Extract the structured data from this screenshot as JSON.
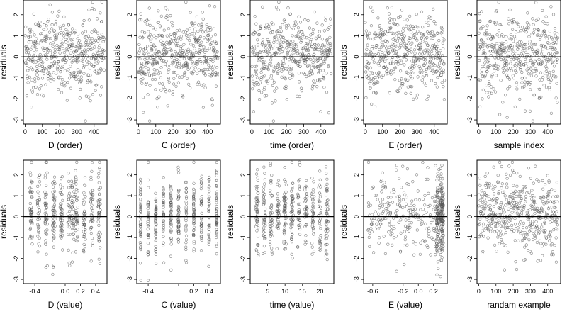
{
  "chart_data": [
    {
      "type": "scatter",
      "xlabel": "D (order)",
      "ylabel": "residuals",
      "xlim": [
        -10,
        475
      ],
      "ylim": [
        -3.2,
        2.7
      ],
      "xticks": [
        0,
        100,
        200,
        300,
        400
      ],
      "yticks": [
        -3,
        -2,
        -1,
        0,
        1,
        2
      ],
      "hline": 0,
      "distribution": "index"
    },
    {
      "type": "scatter",
      "xlabel": "C (order)",
      "ylabel": "residuals",
      "xlim": [
        -10,
        475
      ],
      "ylim": [
        -3.2,
        2.7
      ],
      "xticks": [
        0,
        100,
        200,
        300,
        400
      ],
      "yticks": [
        -3,
        -2,
        -1,
        0,
        1,
        2
      ],
      "hline": 0,
      "distribution": "index"
    },
    {
      "type": "scatter",
      "xlabel": "time (order)",
      "ylabel": "residuals",
      "xlim": [
        -10,
        475
      ],
      "ylim": [
        -3.2,
        2.7
      ],
      "xticks": [
        0,
        100,
        200,
        300,
        400
      ],
      "yticks": [
        -3,
        -2,
        -1,
        0,
        1,
        2
      ],
      "hline": 0,
      "distribution": "index"
    },
    {
      "type": "scatter",
      "xlabel": "E (order)",
      "ylabel": "residuals",
      "xlim": [
        -10,
        475
      ],
      "ylim": [
        -3.2,
        2.7
      ],
      "xticks": [
        0,
        100,
        200,
        300,
        400
      ],
      "yticks": [
        -3,
        -2,
        -1,
        0,
        1,
        2
      ],
      "hline": 0,
      "distribution": "index"
    },
    {
      "type": "scatter",
      "xlabel": "sample index",
      "ylabel": "residuals",
      "xlim": [
        -10,
        475
      ],
      "ylim": [
        -3.2,
        2.7
      ],
      "xticks": [
        0,
        100,
        200,
        300,
        400
      ],
      "yticks": [
        -3,
        -2,
        -1,
        0,
        1,
        2
      ],
      "hline": 0,
      "distribution": "index"
    },
    {
      "type": "scatter",
      "xlabel": "D (value)",
      "ylabel": "residuals",
      "xlim": [
        -0.55,
        0.55
      ],
      "ylim": [
        -3.2,
        2.7
      ],
      "xticks": [
        -0.4,
        0.0,
        0.2,
        0.4
      ],
      "xticklabels": [
        "-0.4",
        "0.0",
        "0.2",
        "0.4"
      ],
      "yticks": [
        -3,
        -2,
        -1,
        0,
        1,
        2
      ],
      "hline": 0,
      "distribution": "clustered",
      "cluster_values": [
        -0.45,
        -0.35,
        -0.25,
        -0.15,
        -0.05,
        0.05,
        0.1,
        0.15,
        0.25,
        0.35,
        0.45
      ]
    },
    {
      "type": "scatter",
      "xlabel": "C (value)",
      "ylabel": "residuals",
      "xlim": [
        -0.55,
        0.55
      ],
      "ylim": [
        -3.2,
        2.7
      ],
      "xticks": [
        -0.4,
        0.0,
        0.2,
        0.4
      ],
      "xticklabels": [
        "-0.4",
        "",
        "0.2",
        "0.4"
      ],
      "yticks": [
        -3,
        -2,
        -1,
        0,
        1,
        2
      ],
      "hline": 0,
      "distribution": "discrete",
      "cluster_values": [
        -0.5,
        -0.4,
        -0.3,
        -0.2,
        -0.1,
        0.0,
        0.1,
        0.2,
        0.3,
        0.4,
        0.5
      ]
    },
    {
      "type": "scatter",
      "xlabel": "time (value)",
      "ylabel": "residuals",
      "xlim": [
        0,
        24
      ],
      "ylim": [
        -3.2,
        2.7
      ],
      "xticks": [
        5,
        10,
        15,
        20
      ],
      "yticks": [
        -3,
        -2,
        -1,
        0,
        1,
        2
      ],
      "hline": 0,
      "distribution": "clustered",
      "cluster_values": [
        2,
        4,
        6,
        8,
        10,
        12,
        14,
        16,
        18,
        20,
        22
      ]
    },
    {
      "type": "scatter",
      "xlabel": "E (value)",
      "ylabel": "residuals",
      "xlim": [
        -0.72,
        0.38
      ],
      "ylim": [
        -3.2,
        2.7
      ],
      "xticks": [
        -0.6,
        -0.2,
        0.0,
        0.2
      ],
      "xticklabels": [
        "-0.6",
        "-0.2",
        "0.0",
        "0.2"
      ],
      "yticks": [
        -3,
        -2,
        -1,
        0,
        1,
        2
      ],
      "hline": 0,
      "distribution": "skewed",
      "cluster_values": [
        0.25,
        0.3,
        0.32
      ]
    },
    {
      "type": "scatter",
      "xlabel": "randam example",
      "ylabel": "residuals",
      "xlim": [
        -10,
        475
      ],
      "ylim": [
        -3.2,
        2.7
      ],
      "xticks": [
        0,
        100,
        200,
        300,
        400
      ],
      "yticks": [
        -3,
        -2,
        -1,
        0,
        1,
        2
      ],
      "hline": 0,
      "regression_slope": -0.001,
      "distribution": "index"
    }
  ]
}
